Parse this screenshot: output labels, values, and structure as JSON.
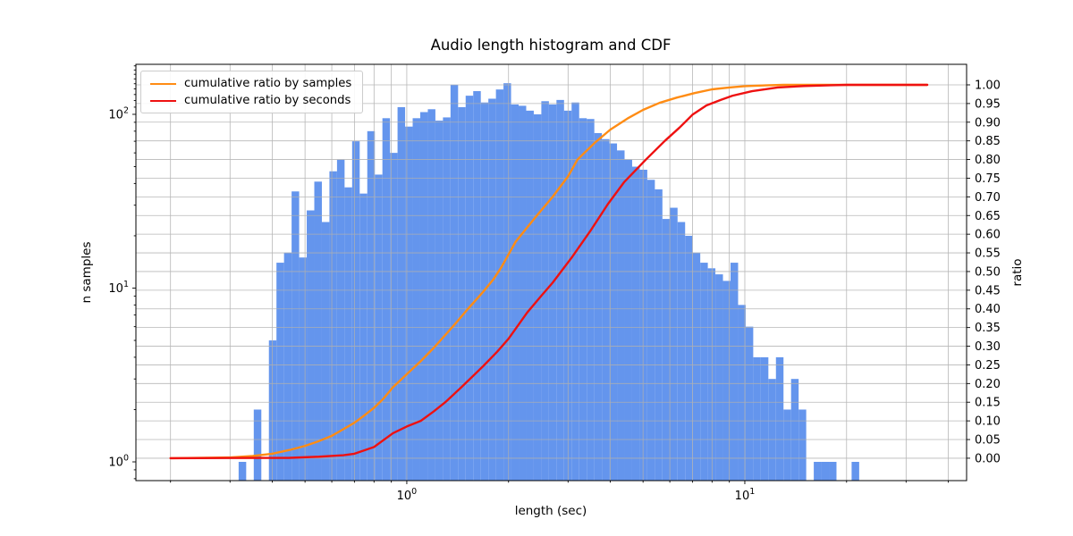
{
  "title": "Audio length histogram and CDF",
  "axes": {
    "x": {
      "label": "length (sec)",
      "scale": "log",
      "min": 0.158,
      "max": 45.3,
      "major_ticks": [
        1,
        10
      ],
      "minor_ticks": [
        0.2,
        0.3,
        0.4,
        0.5,
        0.6,
        0.7,
        0.8,
        0.9,
        2,
        3,
        4,
        5,
        6,
        7,
        8,
        9,
        20,
        30,
        40
      ]
    },
    "y_left": {
      "label": "n samples",
      "scale": "log",
      "min": 0.78,
      "max": 194,
      "major_ticks": [
        1,
        10,
        100
      ],
      "minor_ticks": [
        0.8,
        0.9,
        2,
        3,
        4,
        5,
        6,
        7,
        8,
        9,
        20,
        30,
        40,
        50,
        60,
        70,
        80,
        90,
        110,
        120,
        130,
        140,
        150,
        160,
        170,
        180,
        190
      ]
    },
    "y_right": {
      "label": "ratio",
      "scale": "linear",
      "min": -0.06,
      "max": 1.055,
      "ticks": [
        0,
        0.05,
        0.1,
        0.15,
        0.2,
        0.25,
        0.3,
        0.35,
        0.4,
        0.45,
        0.5,
        0.55,
        0.6,
        0.65,
        0.7,
        0.75,
        0.8,
        0.85,
        0.9,
        0.95,
        1.0
      ]
    }
  },
  "legend": {
    "items": [
      {
        "label": "cumulative ratio by samples",
        "color": "#ff8c14"
      },
      {
        "label": "cumulative ratio by seconds",
        "color": "#ee1111"
      }
    ]
  },
  "colors": {
    "bar": "#6495ed",
    "grid": "#b0b0b0",
    "spine": "#000000",
    "text": "#000000"
  },
  "chart_data": {
    "type": "bar",
    "subtype": "log-histogram with cumulative line series",
    "title": "Audio length histogram and CDF",
    "xlabel": "length (sec)",
    "ylabel": "n samples",
    "ylabel_right": "ratio",
    "x_scale": "log",
    "y_scale": "log",
    "xlim": [
      0.158,
      45.3
    ],
    "ylim": [
      0.78,
      194
    ],
    "ylim_right": [
      -0.06,
      1.055
    ],
    "grid": true,
    "legend_position": "upper left",
    "histogram": {
      "name": "audio length histogram",
      "units_x": "seconds",
      "units_y": "n samples",
      "log_spaced_bins": true,
      "bin_min_sec": 0.2,
      "bin_max_sec": 34.66,
      "n_bins": 100,
      "counts": [
        0,
        0,
        0,
        0,
        0,
        0,
        0,
        0,
        0,
        1,
        0,
        2,
        0,
        5,
        14,
        16,
        36,
        15,
        28,
        41,
        24,
        47,
        55,
        38,
        70,
        35,
        80,
        45,
        95,
        60,
        110,
        85,
        95,
        103,
        107,
        92,
        96,
        148,
        110,
        128,
        136,
        117,
        123,
        139,
        151,
        114,
        112,
        105,
        100,
        119,
        114,
        121,
        105,
        117,
        95,
        94,
        78,
        72,
        68,
        62,
        55,
        50,
        48,
        42,
        37,
        25,
        29,
        24,
        20,
        16,
        14,
        13,
        12,
        11,
        14,
        8,
        6,
        4,
        4,
        3,
        4,
        2,
        3,
        2,
        0,
        1,
        1,
        1,
        0,
        0,
        1,
        0,
        0,
        0,
        0,
        0,
        0,
        0,
        0,
        0
      ]
    },
    "series": [
      {
        "name": "cumulative ratio by samples",
        "color": "#ff8c14",
        "points": [
          [
            0.2,
            0
          ],
          [
            0.3,
            0.002
          ],
          [
            0.35,
            0.006
          ],
          [
            0.4,
            0.012
          ],
          [
            0.45,
            0.022
          ],
          [
            0.5,
            0.033
          ],
          [
            0.55,
            0.046
          ],
          [
            0.6,
            0.06
          ],
          [
            0.65,
            0.078
          ],
          [
            0.7,
            0.095
          ],
          [
            0.75,
            0.115
          ],
          [
            0.8,
            0.135
          ],
          [
            0.85,
            0.158
          ],
          [
            0.91,
            0.19
          ],
          [
            1.0,
            0.225
          ],
          [
            1.1,
            0.26
          ],
          [
            1.2,
            0.295
          ],
          [
            1.3,
            0.33
          ],
          [
            1.4,
            0.363
          ],
          [
            1.5,
            0.395
          ],
          [
            1.68,
            0.445
          ],
          [
            1.8,
            0.478
          ],
          [
            1.9,
            0.51
          ],
          [
            2.1,
            0.58
          ],
          [
            2.4,
            0.645
          ],
          [
            2.7,
            0.7
          ],
          [
            3.0,
            0.755
          ],
          [
            3.2,
            0.8
          ],
          [
            3.6,
            0.845
          ],
          [
            4.0,
            0.88
          ],
          [
            4.5,
            0.91
          ],
          [
            5.0,
            0.933
          ],
          [
            5.6,
            0.952
          ],
          [
            6.3,
            0.966
          ],
          [
            7.1,
            0.978
          ],
          [
            8.0,
            0.988
          ],
          [
            9.0,
            0.993
          ],
          [
            10.0,
            0.9965
          ],
          [
            11.5,
            0.9985
          ],
          [
            13.0,
            1.0
          ],
          [
            34.66,
            1.0
          ]
        ]
      },
      {
        "name": "cumulative ratio by seconds",
        "color": "#ee1111",
        "points": [
          [
            0.2,
            0
          ],
          [
            0.45,
            0.001
          ],
          [
            0.55,
            0.004
          ],
          [
            0.65,
            0.008
          ],
          [
            0.7,
            0.012
          ],
          [
            0.8,
            0.03
          ],
          [
            0.91,
            0.067
          ],
          [
            1.0,
            0.085
          ],
          [
            1.1,
            0.1
          ],
          [
            1.2,
            0.125
          ],
          [
            1.3,
            0.15
          ],
          [
            1.45,
            0.19
          ],
          [
            1.68,
            0.246
          ],
          [
            1.85,
            0.285
          ],
          [
            2.0,
            0.32
          ],
          [
            2.27,
            0.39
          ],
          [
            2.5,
            0.435
          ],
          [
            2.7,
            0.47
          ],
          [
            3.09,
            0.54
          ],
          [
            3.5,
            0.61
          ],
          [
            3.93,
            0.68
          ],
          [
            4.4,
            0.74
          ],
          [
            5.1,
            0.8
          ],
          [
            5.8,
            0.85
          ],
          [
            6.4,
            0.885
          ],
          [
            7.0,
            0.92
          ],
          [
            7.7,
            0.945
          ],
          [
            8.5,
            0.96
          ],
          [
            9.2,
            0.971
          ],
          [
            10.5,
            0.983
          ],
          [
            12.5,
            0.993
          ],
          [
            15.0,
            0.997
          ],
          [
            18.0,
            0.999
          ],
          [
            20.0,
            1.0
          ],
          [
            34.66,
            1.0
          ]
        ]
      }
    ]
  }
}
